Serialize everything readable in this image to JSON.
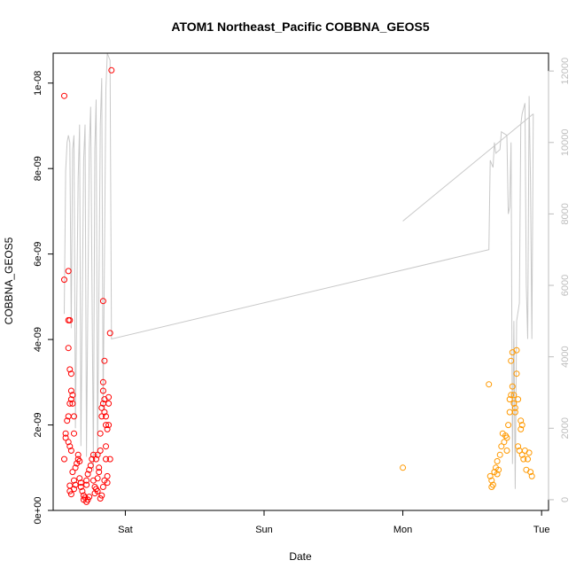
{
  "chart_data": {
    "type": "scatter",
    "title": "ATOM1 Northeast_Pacific COBBNA_GEOS5",
    "xlabel": "Date",
    "ylabel": "COBBNA_GEOS5",
    "x_ticks": [
      {
        "day": 1,
        "label": "Sat"
      },
      {
        "day": 2,
        "label": "Sun"
      },
      {
        "day": 3,
        "label": "Mon"
      },
      {
        "day": 4,
        "label": "Tue"
      }
    ],
    "xlim": [
      0.48,
      4.05
    ],
    "ylim": [
      0,
      1.07e-08
    ],
    "y_ticks": [
      {
        "value": 0,
        "label": "0e+00"
      },
      {
        "value": 2e-09,
        "label": "2e-09"
      },
      {
        "value": 4e-09,
        "label": "4e-09"
      },
      {
        "value": 6e-09,
        "label": "6e-09"
      },
      {
        "value": 8e-09,
        "label": "8e-09"
      },
      {
        "value": 1e-08,
        "label": "1e-08"
      }
    ],
    "right_axis": {
      "lim": [
        -300,
        12500
      ],
      "ticks": [
        {
          "value": 0,
          "label": "0"
        },
        {
          "value": 2000,
          "label": "2000"
        },
        {
          "value": 4000,
          "label": "4000"
        },
        {
          "value": 6000,
          "label": "6000"
        },
        {
          "value": 8000,
          "label": "8000"
        },
        {
          "value": 10000,
          "label": "10000"
        },
        {
          "value": 12000,
          "label": "12000"
        }
      ]
    },
    "colors": {
      "series1": "#ff0000",
      "series2": "#ff9900",
      "altitude": "#c8c8c8",
      "axis": "#000000",
      "right_axis": "#bdbdbd"
    },
    "series": [
      {
        "color": "#ff0000",
        "points": [
          [
            0.56,
            9.7e-09
          ],
          [
            0.56,
            5.4e-09
          ],
          [
            0.57,
            1.8e-09
          ],
          [
            0.57,
            1.7e-09
          ],
          [
            0.56,
            1.2e-09
          ],
          [
            0.59,
            5.6e-09
          ],
          [
            0.59,
            4.45e-09
          ],
          [
            0.6,
            4.45e-09
          ],
          [
            0.59,
            3.8e-09
          ],
          [
            0.6,
            3.3e-09
          ],
          [
            0.61,
            3.2e-09
          ],
          [
            0.59,
            2.2e-09
          ],
          [
            0.58,
            2.1e-09
          ],
          [
            0.6,
            2.5e-09
          ],
          [
            0.61,
            2.8e-09
          ],
          [
            0.62,
            2.7e-09
          ],
          [
            0.62,
            2.5e-09
          ],
          [
            0.61,
            2.6e-09
          ],
          [
            0.63,
            2.2e-09
          ],
          [
            0.63,
            1.8e-09
          ],
          [
            0.6,
            1.5e-09
          ],
          [
            0.61,
            1.4e-09
          ],
          [
            0.59,
            1.6e-09
          ],
          [
            0.6,
            5.8e-10
          ],
          [
            0.6,
            4.5e-10
          ],
          [
            0.61,
            3.8e-10
          ],
          [
            0.63,
            7e-10
          ],
          [
            0.64,
            6e-10
          ],
          [
            0.63,
            5e-10
          ],
          [
            0.62,
            9e-10
          ],
          [
            0.64,
            1e-09
          ],
          [
            0.65,
            1.1e-09
          ],
          [
            0.66,
            1.2e-09
          ],
          [
            0.66,
            1.3e-09
          ],
          [
            0.67,
            1.15e-09
          ],
          [
            0.67,
            7.5e-10
          ],
          [
            0.68,
            6.5e-10
          ],
          [
            0.68,
            5.5e-10
          ],
          [
            0.69,
            4.5e-10
          ],
          [
            0.7,
            3.5e-10
          ],
          [
            0.7,
            2.5e-10
          ],
          [
            0.71,
            3e-10
          ],
          [
            0.72,
            2e-10
          ],
          [
            0.73,
            2.5e-10
          ],
          [
            0.74,
            3.2e-10
          ],
          [
            0.72,
            6e-10
          ],
          [
            0.72,
            7e-10
          ],
          [
            0.73,
            8.5e-10
          ],
          [
            0.74,
            9.5e-10
          ],
          [
            0.75,
            1.05e-09
          ],
          [
            0.76,
            1.2e-09
          ],
          [
            0.77,
            1.3e-09
          ],
          [
            0.77,
            7e-10
          ],
          [
            0.78,
            5.5e-10
          ],
          [
            0.78,
            4e-10
          ],
          [
            0.79,
            5e-10
          ],
          [
            0.8,
            4.5e-10
          ],
          [
            0.8,
            7.5e-10
          ],
          [
            0.81,
            9e-10
          ],
          [
            0.81,
            1e-09
          ],
          [
            0.82,
            1.4e-09
          ],
          [
            0.82,
            1.8e-09
          ],
          [
            0.83,
            2.2e-09
          ],
          [
            0.83,
            2.4e-09
          ],
          [
            0.84,
            2.5e-09
          ],
          [
            0.84,
            2.8e-09
          ],
          [
            0.85,
            2.6e-09
          ],
          [
            0.85,
            2.3e-09
          ],
          [
            0.86,
            2.2e-09
          ],
          [
            0.86,
            2e-09
          ],
          [
            0.87,
            1.9e-09
          ],
          [
            0.84,
            3e-09
          ],
          [
            0.85,
            3.5e-09
          ],
          [
            0.84,
            4.9e-09
          ],
          [
            0.86,
            1.5e-09
          ],
          [
            0.86,
            1.2e-09
          ],
          [
            0.85,
            7e-10
          ],
          [
            0.84,
            5.5e-10
          ],
          [
            0.83,
            3.5e-10
          ],
          [
            0.82,
            2.8e-10
          ],
          [
            0.87,
            8e-10
          ],
          [
            0.87,
            6.5e-10
          ],
          [
            0.88,
            2e-09
          ],
          [
            0.88,
            2.5e-09
          ],
          [
            0.88,
            2.65e-09
          ],
          [
            0.89,
            1.2e-09
          ],
          [
            0.9,
            1.03e-08
          ],
          [
            0.89,
            4.15e-09
          ],
          [
            0.79,
            1.2e-09
          ],
          [
            0.8,
            1.3e-09
          ]
        ]
      },
      {
        "color": "#ff9900",
        "points": [
          [
            3.0,
            1e-09
          ],
          [
            3.62,
            2.95e-09
          ],
          [
            3.63,
            8e-10
          ],
          [
            3.64,
            7e-10
          ],
          [
            3.64,
            5.5e-10
          ],
          [
            3.65,
            6e-10
          ],
          [
            3.66,
            9e-10
          ],
          [
            3.67,
            1e-09
          ],
          [
            3.68,
            1.15e-09
          ],
          [
            3.68,
            8.5e-10
          ],
          [
            3.69,
            9.5e-10
          ],
          [
            3.7,
            1.3e-09
          ],
          [
            3.71,
            1.5e-09
          ],
          [
            3.72,
            1.8e-09
          ],
          [
            3.73,
            1.6e-09
          ],
          [
            3.74,
            1.75e-09
          ],
          [
            3.75,
            1.4e-09
          ],
          [
            3.75,
            1.7e-09
          ],
          [
            3.76,
            2e-09
          ],
          [
            3.77,
            2.3e-09
          ],
          [
            3.77,
            2.6e-09
          ],
          [
            3.78,
            2.7e-09
          ],
          [
            3.78,
            3.5e-09
          ],
          [
            3.79,
            3.7e-09
          ],
          [
            3.79,
            2.9e-09
          ],
          [
            3.8,
            2.7e-09
          ],
          [
            3.8,
            2.5e-09
          ],
          [
            3.81,
            2.3e-09
          ],
          [
            3.81,
            2.4e-09
          ],
          [
            3.82,
            3.2e-09
          ],
          [
            3.82,
            3.75e-09
          ],
          [
            3.83,
            2.6e-09
          ],
          [
            3.83,
            1.5e-09
          ],
          [
            3.84,
            1.4e-09
          ],
          [
            3.85,
            2.1e-09
          ],
          [
            3.86,
            1.3e-09
          ],
          [
            3.87,
            1.2e-09
          ],
          [
            3.88,
            1.4e-09
          ],
          [
            3.89,
            9.5e-10
          ],
          [
            3.9,
            1.2e-09
          ],
          [
            3.91,
            1.35e-09
          ],
          [
            3.92,
            9e-10
          ],
          [
            3.93,
            8e-10
          ],
          [
            3.85,
            1.9e-09
          ],
          [
            3.86,
            2e-09
          ]
        ]
      }
    ],
    "altitude_line": {
      "color": "#c8c8c8",
      "points": [
        [
          0.56,
          5200
        ],
        [
          0.57,
          9200
        ],
        [
          0.58,
          10000
        ],
        [
          0.59,
          10200
        ],
        [
          0.6,
          10000
        ],
        [
          0.61,
          4800
        ],
        [
          0.62,
          9800
        ],
        [
          0.63,
          10200
        ],
        [
          0.64,
          2000
        ],
        [
          0.66,
          9000
        ],
        [
          0.67,
          10500
        ],
        [
          0.68,
          1500
        ],
        [
          0.7,
          9500
        ],
        [
          0.71,
          10500
        ],
        [
          0.72,
          1200
        ],
        [
          0.74,
          9800
        ],
        [
          0.75,
          11000
        ],
        [
          0.77,
          800
        ],
        [
          0.78,
          9800
        ],
        [
          0.79,
          11200
        ],
        [
          0.8,
          1200
        ],
        [
          0.82,
          10500
        ],
        [
          0.83,
          11800
        ],
        [
          0.84,
          2500
        ],
        [
          0.86,
          11500
        ],
        [
          0.87,
          12500
        ],
        [
          0.88,
          12400
        ],
        [
          0.89,
          12300
        ],
        [
          0.9,
          4500
        ],
        [
          3.62,
          7000
        ],
        [
          3.63,
          9500
        ],
        [
          3.65,
          9300
        ],
        [
          3.66,
          10000
        ],
        [
          3.67,
          9700
        ],
        [
          3.7,
          9800
        ],
        [
          3.71,
          10300
        ],
        [
          3.75,
          10200
        ],
        [
          3.76,
          8000
        ],
        [
          3.77,
          8200
        ],
        [
          3.78,
          10000
        ],
        [
          3.79,
          1000
        ],
        [
          3.8,
          5000
        ],
        [
          3.81,
          300
        ],
        [
          3.82,
          5000
        ],
        [
          3.84,
          5500
        ],
        [
          3.85,
          10500
        ],
        [
          3.86,
          10800
        ],
        [
          3.88,
          11100
        ],
        [
          3.89,
          6000
        ],
        [
          3.9,
          4500
        ],
        [
          3.91,
          11300
        ],
        [
          3.92,
          9000
        ],
        [
          3.93,
          4500
        ],
        [
          3.94,
          10800
        ]
      ],
      "secondary_segment": [
        [
          3.0,
          7800
        ],
        [
          3.94,
          10800
        ]
      ]
    }
  }
}
